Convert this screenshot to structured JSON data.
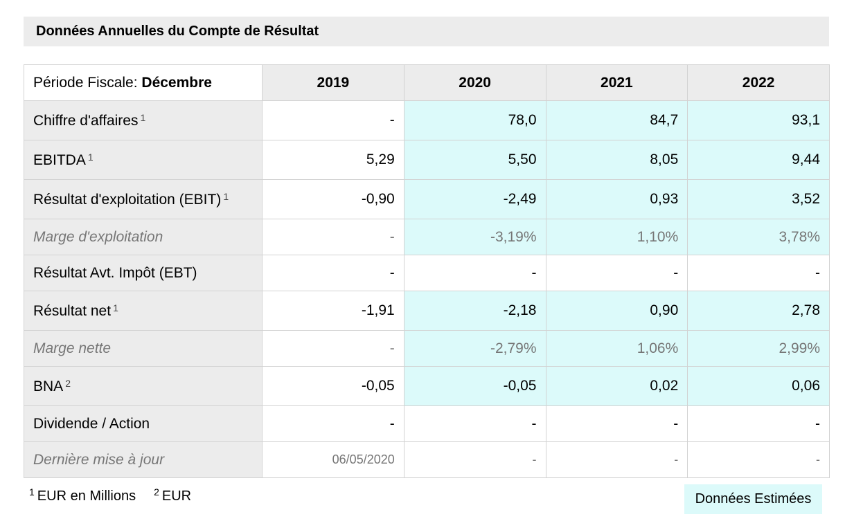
{
  "title": "Données Annuelles du Compte de Résultat",
  "table": {
    "period_prefix": "Période Fiscale: ",
    "period_value": "Décembre",
    "years": [
      "2019",
      "2020",
      "2021",
      "2022"
    ],
    "rows": [
      {
        "label": "Chiffre d'affaires",
        "note": "1",
        "values": [
          "-",
          "78,0",
          "84,7",
          "93,1"
        ]
      },
      {
        "label": "EBITDA",
        "note": "1",
        "values": [
          "5,29",
          "5,50",
          "8,05",
          "9,44"
        ]
      },
      {
        "label": "Résultat d'exploitation (EBIT)",
        "note": "1",
        "values": [
          "-0,90",
          "-2,49",
          "0,93",
          "3,52"
        ]
      },
      {
        "label": "Marge d'exploitation",
        "note": "",
        "values": [
          "-",
          "-3,19%",
          "1,10%",
          "3,78%"
        ]
      },
      {
        "label": "Résultat Avt. Impôt (EBT)",
        "note": "",
        "values": [
          "-",
          "-",
          "-",
          "-"
        ]
      },
      {
        "label": "Résultat net",
        "note": "1",
        "values": [
          "-1,91",
          "-2,18",
          "0,90",
          "2,78"
        ]
      },
      {
        "label": "Marge nette",
        "note": "",
        "values": [
          "-",
          "-2,79%",
          "1,06%",
          "2,99%"
        ]
      },
      {
        "label": "BNA",
        "note": "2",
        "values": [
          "-0,05",
          "-0,05",
          "0,02",
          "0,06"
        ]
      },
      {
        "label": "Dividende / Action",
        "note": "",
        "values": [
          "-",
          "-",
          "-",
          "-"
        ]
      },
      {
        "label": "Dernière mise à jour",
        "note": "",
        "values": [
          "06/05/2020",
          "-",
          "-",
          "-"
        ]
      }
    ]
  },
  "footnotes": [
    {
      "marker": "1",
      "text": "EUR en Millions"
    },
    {
      "marker": "2",
      "text": "EUR"
    }
  ],
  "estimated_label": "Données Estimées",
  "colors": {
    "header_bg": "#ececec",
    "estimated_bg": "#dcfafa",
    "muted_text": "#767676",
    "border": "#d2d2d2"
  }
}
